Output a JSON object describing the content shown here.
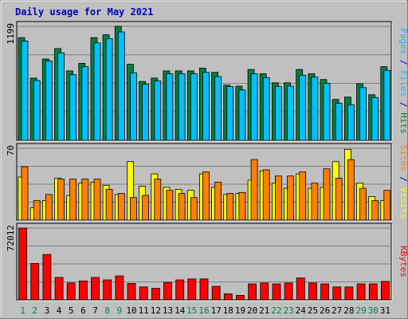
{
  "chart_data": [
    {
      "type": "bar",
      "title": "Daily usage for May 2021",
      "panel": "top",
      "max_label": "1199",
      "ylim": [
        0,
        1199
      ],
      "grid": true,
      "legend": {
        "placement": "right-vertical",
        "parts": [
          {
            "text": "Pages",
            "color": "#00c0ff"
          },
          {
            "text": " / ",
            "color": "#0000c0"
          },
          {
            "text": "Files",
            "color": "#00c0ff"
          },
          {
            "text": " / ",
            "color": "#0000c0"
          },
          {
            "text": "Hits",
            "color": "#008040"
          }
        ]
      },
      "categories": [
        "1",
        "2",
        "3",
        "4",
        "5",
        "6",
        "7",
        "8",
        "9",
        "10",
        "11",
        "12",
        "13",
        "14",
        "15",
        "16",
        "17",
        "18",
        "19",
        "20",
        "21",
        "22",
        "23",
        "24",
        "25",
        "26",
        "27",
        "28",
        "29",
        "30",
        "31"
      ],
      "series": [
        {
          "name": "Hits",
          "color": "#008040",
          "values": [
            1080,
            655,
            855,
            965,
            730,
            810,
            1080,
            1110,
            1199,
            800,
            620,
            655,
            730,
            730,
            730,
            760,
            715,
            580,
            570,
            745,
            700,
            605,
            605,
            745,
            700,
            640,
            430,
            455,
            595,
            480,
            775
          ]
        },
        {
          "name": "Files",
          "color": "#00c0ff",
          "values": [
            1045,
            630,
            835,
            920,
            690,
            775,
            1025,
            1070,
            1140,
            710,
            590,
            625,
            700,
            700,
            700,
            715,
            670,
            565,
            530,
            700,
            660,
            565,
            570,
            685,
            665,
            600,
            390,
            375,
            555,
            450,
            735
          ]
        }
      ]
    },
    {
      "type": "bar",
      "panel": "middle",
      "max_label": "70",
      "ylim": [
        0,
        70
      ],
      "grid": true,
      "legend": {
        "placement": "right-vertical",
        "parts": [
          {
            "text": "Sites",
            "color": "#ff8000"
          },
          {
            "text": " / ",
            "color": "#0000c0"
          },
          {
            "text": "Visits",
            "color": "#ffff00"
          }
        ]
      },
      "categories": [
        "1",
        "2",
        "3",
        "4",
        "5",
        "6",
        "7",
        "8",
        "9",
        "10",
        "11",
        "12",
        "13",
        "14",
        "15",
        "16",
        "17",
        "18",
        "19",
        "20",
        "21",
        "22",
        "23",
        "24",
        "25",
        "26",
        "27",
        "28",
        "29",
        "30",
        "31"
      ],
      "series": [
        {
          "name": "Visits",
          "color": "#ffff00",
          "values": [
            42,
            12,
            19,
            41,
            24,
            36,
            37,
            34,
            25,
            57,
            33,
            45,
            32,
            30,
            29,
            45,
            32,
            25,
            26,
            39,
            48,
            36,
            31,
            45,
            31,
            32,
            57,
            69,
            36,
            23,
            19
          ]
        },
        {
          "name": "Sites",
          "color": "#ff8000",
          "values": [
            52,
            19,
            25,
            40,
            40,
            40,
            40,
            30,
            26,
            22,
            24,
            40,
            29,
            26,
            22,
            47,
            37,
            26,
            27,
            59,
            49,
            43,
            43,
            47,
            36,
            50,
            41,
            59,
            31,
            19,
            29
          ]
        }
      ]
    },
    {
      "type": "bar",
      "panel": "bottom",
      "max_label": "72012",
      "ylim": [
        0,
        72012
      ],
      "grid": true,
      "legend": {
        "placement": "right-vertical",
        "parts": [
          {
            "text": "KBytes",
            "color": "#ff0000"
          }
        ]
      },
      "categories": [
        "1",
        "2",
        "3",
        "4",
        "5",
        "6",
        "7",
        "8",
        "9",
        "10",
        "11",
        "12",
        "13",
        "14",
        "15",
        "16",
        "17",
        "18",
        "19",
        "20",
        "21",
        "22",
        "23",
        "24",
        "25",
        "26",
        "27",
        "28",
        "29",
        "30",
        "31"
      ],
      "series": [
        {
          "name": "KBytes",
          "color": "#ff0000",
          "values": [
            72012,
            36500,
            45500,
            22500,
            17000,
            19000,
            22500,
            20000,
            24000,
            16500,
            13000,
            11500,
            17500,
            20000,
            21000,
            21000,
            13500,
            6000,
            4500,
            16000,
            17000,
            16000,
            17000,
            22000,
            17000,
            16000,
            13000,
            13000,
            16000,
            16000,
            18500
          ]
        }
      ]
    }
  ],
  "x_axis": {
    "labels": [
      "1",
      "2",
      "3",
      "4",
      "5",
      "6",
      "7",
      "8",
      "9",
      "10",
      "11",
      "12",
      "13",
      "14",
      "15",
      "16",
      "17",
      "18",
      "19",
      "20",
      "21",
      "22",
      "23",
      "24",
      "25",
      "26",
      "27",
      "28",
      "29",
      "30",
      "31"
    ],
    "weekend_days": [
      1,
      2,
      8,
      9,
      15,
      16,
      22,
      23,
      29,
      30
    ],
    "weekday_color": "#000000",
    "weekend_color": "#008040"
  },
  "title_color": "#0000c0"
}
